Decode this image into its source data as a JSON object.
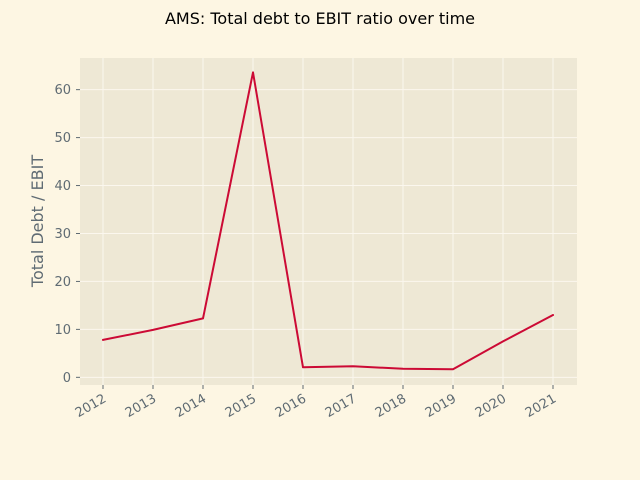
{
  "chart_data": {
    "type": "line",
    "title": "AMS: Total debt to EBIT ratio over time",
    "xlabel": "",
    "ylabel": "Total Debt / EBIT",
    "x": [
      "2012",
      "2013",
      "2014",
      "2015",
      "2016",
      "2017",
      "2018",
      "2019",
      "2020",
      "2021"
    ],
    "series": [
      {
        "values": [
          7.8,
          9.9,
          12.3,
          63.6,
          2.1,
          2.3,
          1.8,
          1.7,
          7.5,
          13.0
        ]
      }
    ],
    "yticks": [
      "0",
      "10",
      "20",
      "30",
      "40",
      "50",
      "60"
    ],
    "ylim": [
      -1.6,
      66.6
    ],
    "grid": true,
    "colors": {
      "page_background": "#fdf6e3",
      "plot_background": "#eee8d5",
      "grid": "#fbf7ee",
      "line": "#cc0a35",
      "tick_text": "#5f6b73"
    }
  }
}
